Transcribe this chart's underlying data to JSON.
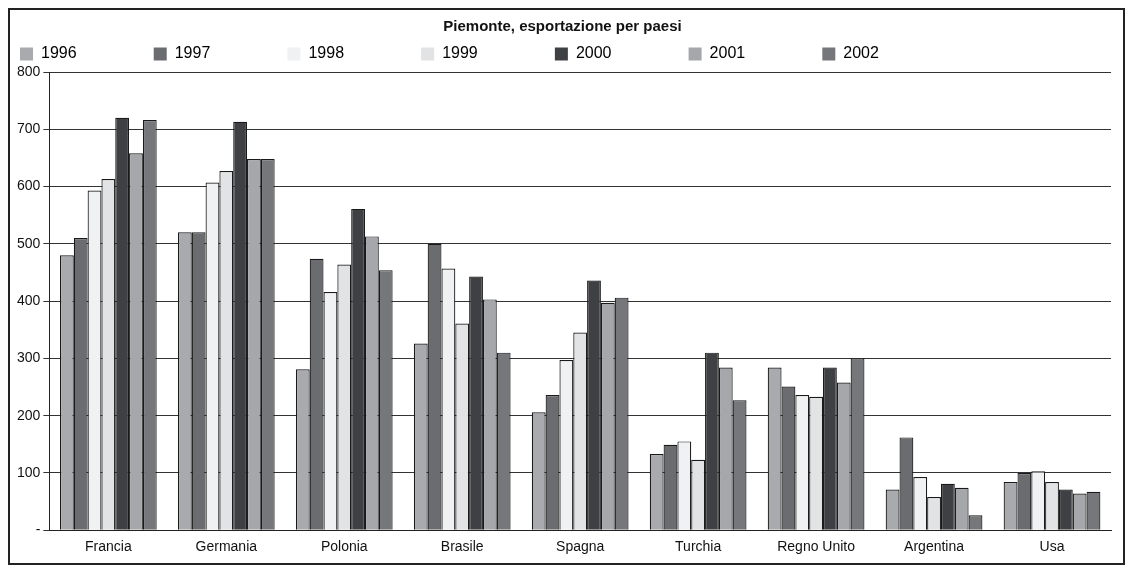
{
  "chart_data": {
    "type": "bar",
    "title": "Piemonte, esportazione per paesi",
    "categories": [
      "Francia",
      "Germania",
      "Polonia",
      "Brasile",
      "Spagna",
      "Turchia",
      "Regno Unito",
      "Argentina",
      "Usa"
    ],
    "series": [
      {
        "name": "1996",
        "color": "#a9aaae",
        "values": [
          480,
          520,
          281,
          326,
          206,
          133,
          284,
          71,
          84
        ]
      },
      {
        "name": "1997",
        "color": "#6b6c70",
        "values": [
          510,
          520,
          474,
          500,
          236,
          149,
          251,
          162,
          100
        ]
      },
      {
        "name": "1998",
        "color": "#f0f1f3",
        "values": [
          593,
          607,
          416,
          457,
          297,
          155,
          236,
          93,
          103
        ]
      },
      {
        "name": "1999",
        "color": "#e2e3e5",
        "values": [
          613,
          627,
          464,
          361,
          345,
          123,
          233,
          58,
          84
        ]
      },
      {
        "name": "2000",
        "color": "#3f4043",
        "values": [
          720,
          713,
          561,
          443,
          436,
          310,
          284,
          81,
          71
        ]
      },
      {
        "name": "2001",
        "color": "#a6a7ab",
        "values": [
          658,
          648,
          513,
          403,
          397,
          284,
          258,
          74,
          64
        ]
      },
      {
        "name": "2002",
        "color": "#76777b",
        "values": [
          716,
          648,
          454,
          310,
          406,
          227,
          300,
          26,
          67
        ]
      }
    ],
    "ylim": [
      0,
      800
    ],
    "yticks": [
      {
        "value": 0,
        "label": "-"
      },
      100,
      200,
      300,
      400,
      500,
      600,
      700,
      800
    ],
    "grid": "y",
    "legend": "top"
  }
}
